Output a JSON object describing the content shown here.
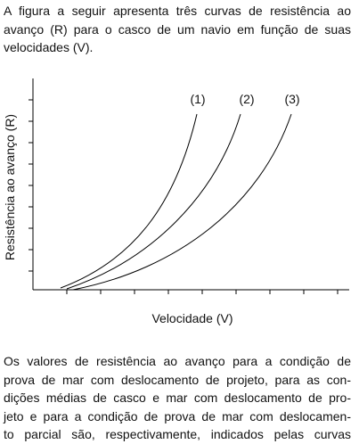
{
  "intro": {
    "lines": [
      "A figura a seguir apresenta três curvas de resistência ao",
      "avanço (R) para o casco de um navio em função de suas",
      "velocidades (V)."
    ]
  },
  "figure": {
    "y_label": "Resistência ao avanço (R)",
    "x_label": "Velocidade (V)",
    "curve_labels": [
      "(1)",
      "(2)",
      "(3)"
    ]
  },
  "question": {
    "lines": [
      "Os valores de resistência ao avanço para a condição de",
      "prova de mar com deslocamento de projeto, para as con-",
      "dições médias de casco e mar com deslocamento de pro-",
      "jeto e para a condição de prova de mar com deslocamen-",
      "to parcial são, respectivamente, indicados pelas curvas"
    ]
  }
}
